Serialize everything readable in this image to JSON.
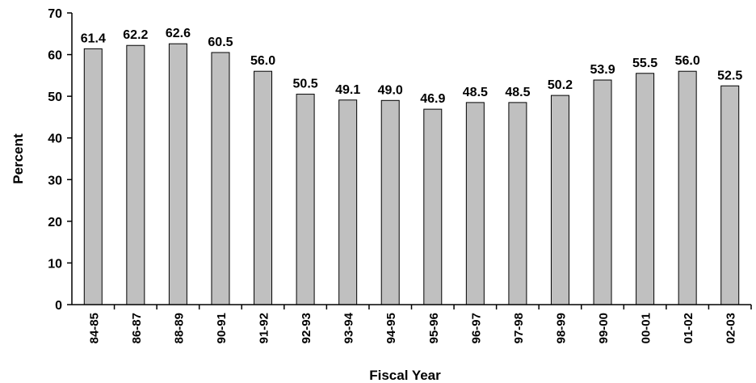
{
  "chart_data": {
    "type": "bar",
    "title": "",
    "xlabel": "Fiscal Year",
    "ylabel": "Percent",
    "ylim": [
      0,
      70
    ],
    "yticks": [
      0,
      10,
      20,
      30,
      40,
      50,
      60,
      70
    ],
    "grid": false,
    "legend": "none",
    "bar_color": "#c0c0c0",
    "categories": [
      "84-85",
      "86-87",
      "88-89",
      "90-91",
      "91-92",
      "92-93",
      "93-94",
      "94-95",
      "95-96",
      "96-97",
      "97-98",
      "98-99",
      "99-00",
      "00-01",
      "01-02",
      "02-03"
    ],
    "values": [
      61.4,
      62.2,
      62.6,
      60.5,
      56.0,
      50.5,
      49.1,
      49.0,
      46.9,
      48.5,
      48.5,
      50.2,
      53.9,
      55.5,
      56.0,
      52.5
    ],
    "data_labels": [
      "61.4",
      "62.2",
      "62.6",
      "60.5",
      "56.0",
      "50.5",
      "49.1",
      "49.0",
      "46.9",
      "48.5",
      "48.5",
      "50.2",
      "53.9",
      "55.5",
      "56.0",
      "52.5"
    ]
  }
}
